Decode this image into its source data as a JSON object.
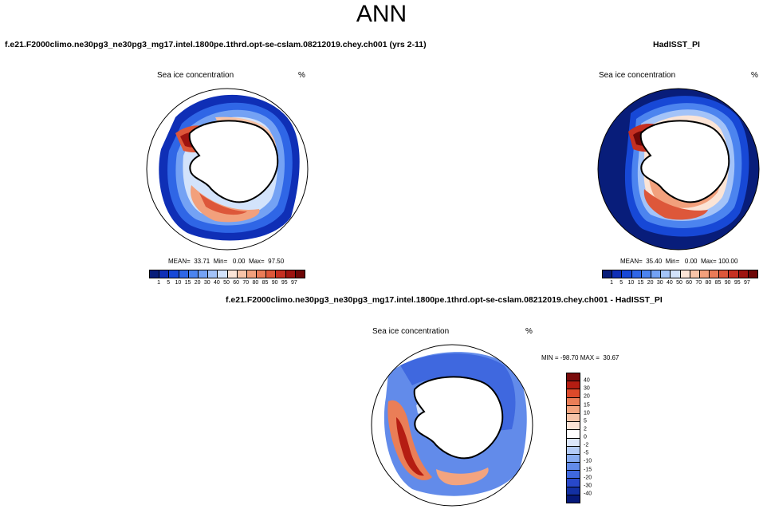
{
  "figure_title": "ANN",
  "panels": [
    {
      "case_title": "f.e21.F2000climo.ne30pg3_ne30pg3_mg17.intel.1800pe.1thrd.opt-se-cslam.08212019.chey.ch001 (yrs 2-11)",
      "var_title": "Sea ice concentration",
      "units": "%",
      "stats": "MEAN=  33.71  Min=   0.00  Max=  97.50"
    },
    {
      "case_title": "HadISST_PI",
      "var_title": "Sea ice concentration",
      "units": "%",
      "stats": "MEAN=  35.40  Min=   0.00  Max= 100.00"
    },
    {
      "case_title": "f.e21.F2000climo.ne30pg3_ne30pg3_mg17.intel.1800pe.1thrd.opt-se-cslam.08212019.chey.ch001 - HadISST_PI",
      "var_title": "Sea ice concentration",
      "units": "%",
      "stats": "MIN = -98.70 MAX =  30.67"
    }
  ],
  "colorbar_levels": [
    "1",
    "5",
    "10",
    "15",
    "20",
    "30",
    "40",
    "50",
    "60",
    "70",
    "80",
    "85",
    "90",
    "95",
    "97"
  ],
  "colorbar_colors": [
    "#081d7a",
    "#0f2fb6",
    "#1748d6",
    "#2f66e6",
    "#4c84ef",
    "#74a2f4",
    "#a3c3f8",
    "#d3e3fb",
    "#fbe4d6",
    "#f8c4a8",
    "#f2a07c",
    "#ea7c58",
    "#dd573a",
    "#c53022",
    "#9e1410",
    "#6e0707"
  ],
  "diff_levels": [
    "40",
    "30",
    "20",
    "15",
    "10",
    "5",
    "2",
    "0",
    "-2",
    "-5",
    "-10",
    "-15",
    "-20",
    "-30",
    "-40"
  ],
  "diff_colors": [
    "#7a0c0c",
    "#b51d12",
    "#dc4a2a",
    "#ea7e57",
    "#f3a47f",
    "#f7c3a7",
    "#fbe2d4",
    "#ffffff",
    "#dbe6fb",
    "#b3cbf7",
    "#88acf1",
    "#628bea",
    "#3f68df",
    "#2848c9",
    "#1330a3",
    "#06197a"
  ]
}
